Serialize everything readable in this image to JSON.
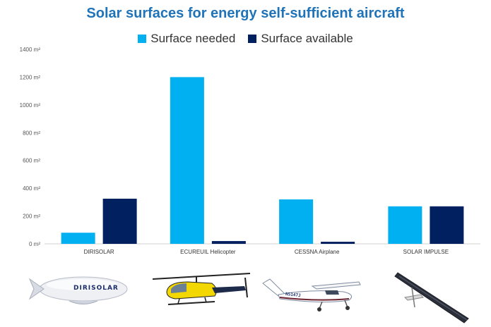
{
  "chart_data": {
    "type": "bar",
    "title": "Solar surfaces for energy self-sufficient aircraft",
    "categories": [
      "DIRISOLAR",
      "ECUREUIL Helicopter",
      "CESSNA Airplane",
      "SOLAR IMPULSE"
    ],
    "series": [
      {
        "name": "Surface needed",
        "color": "#00b0f0",
        "values": [
          80,
          1200,
          320,
          270
        ]
      },
      {
        "name": "Surface available",
        "color": "#002060",
        "values": [
          325,
          20,
          15,
          270
        ]
      }
    ],
    "yticks": [
      "0 m²",
      "200 m²",
      "400 m²",
      "600 m²",
      "800 m²",
      "1000 m²",
      "1200 m²",
      "1400 m²"
    ],
    "ylim": [
      0,
      1400
    ],
    "grid": false,
    "legend": "top",
    "xlabel": "",
    "ylabel": ""
  },
  "pictures": {
    "airship_lettering": "DIRISOLAR",
    "cessna_registration": "N5147J"
  }
}
